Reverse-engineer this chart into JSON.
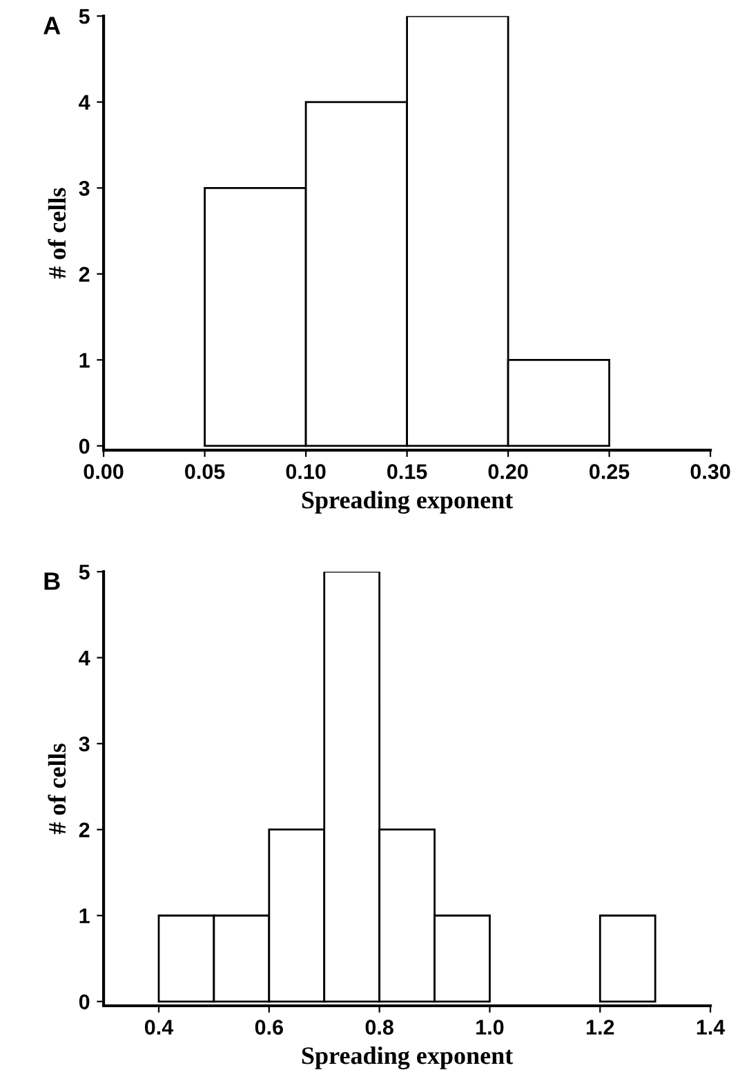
{
  "chart_data": [
    {
      "type": "histogram",
      "annotations": [
        "A"
      ],
      "xlabel": "Spreading exponent",
      "ylabel": "# of cells",
      "bins": [
        0.05,
        0.1,
        0.15,
        0.2,
        0.25
      ],
      "values": [
        3,
        4,
        5,
        1
      ],
      "color": "#ffffff",
      "xlim": [
        0.0,
        0.3
      ],
      "xticks": [
        {
          "value": 0.0,
          "label": "0.00"
        },
        0.05,
        {
          "value": 0.1,
          "label": "0.10"
        },
        0.15,
        {
          "value": 0.2,
          "label": "0.20"
        },
        0.25,
        {
          "value": 0.3,
          "label": "0.30"
        }
      ],
      "ylim": [
        -0.05,
        5
      ],
      "yticks": [
        0,
        1,
        2,
        3,
        4,
        5
      ],
      "grid": false,
      "legend": false
    },
    {
      "type": "histogram",
      "annotations": [
        "B"
      ],
      "xlabel": "Spreading exponent",
      "ylabel": "# of cells",
      "bins": [
        0.4,
        0.5,
        0.6,
        0.7,
        0.8,
        0.9,
        1.0,
        1.1,
        1.2,
        1.3
      ],
      "values": [
        1,
        1,
        2,
        5,
        2,
        1,
        0,
        0,
        1
      ],
      "color": "#ffffff",
      "xlim": [
        0.3,
        1.4
      ],
      "xticks": [
        0.4,
        0.6,
        0.8,
        {
          "value": 1.0,
          "label": "1.0"
        },
        1.2,
        1.4
      ],
      "ylim": [
        -0.05,
        5
      ],
      "yticks": [
        0,
        1,
        2,
        3,
        4,
        5
      ],
      "grid": false,
      "legend": false
    }
  ]
}
